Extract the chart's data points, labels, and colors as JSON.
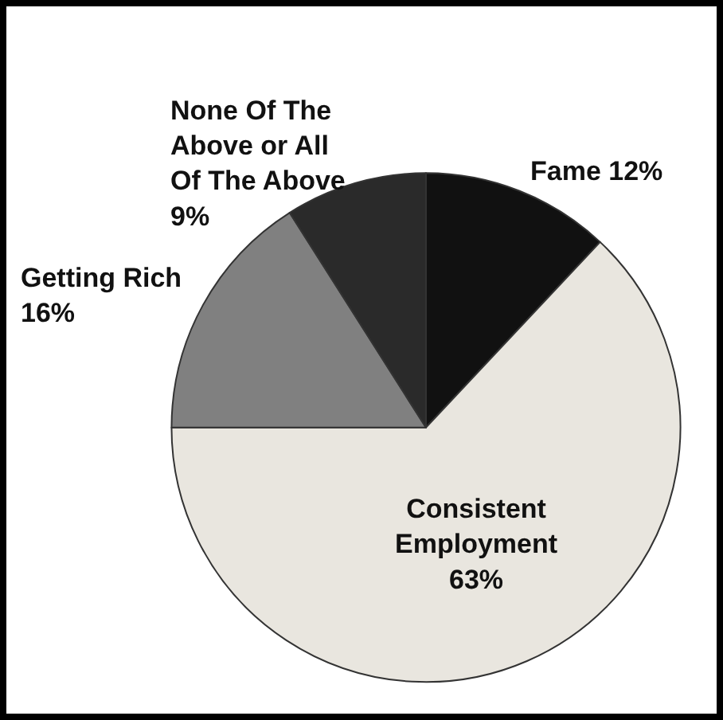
{
  "chart_data": {
    "type": "pie",
    "categories": [
      "Fame",
      "Consistent Employment",
      "Getting Rich",
      "None Of The Above or All Of The Above"
    ],
    "values": [
      12,
      63,
      16,
      9
    ],
    "value_labels": [
      "12%",
      "63%",
      "16%",
      "9%"
    ],
    "colors": [
      "#111111",
      "#e9e6df",
      "#808080",
      "#2a2a2a"
    ],
    "legend": false
  }
}
